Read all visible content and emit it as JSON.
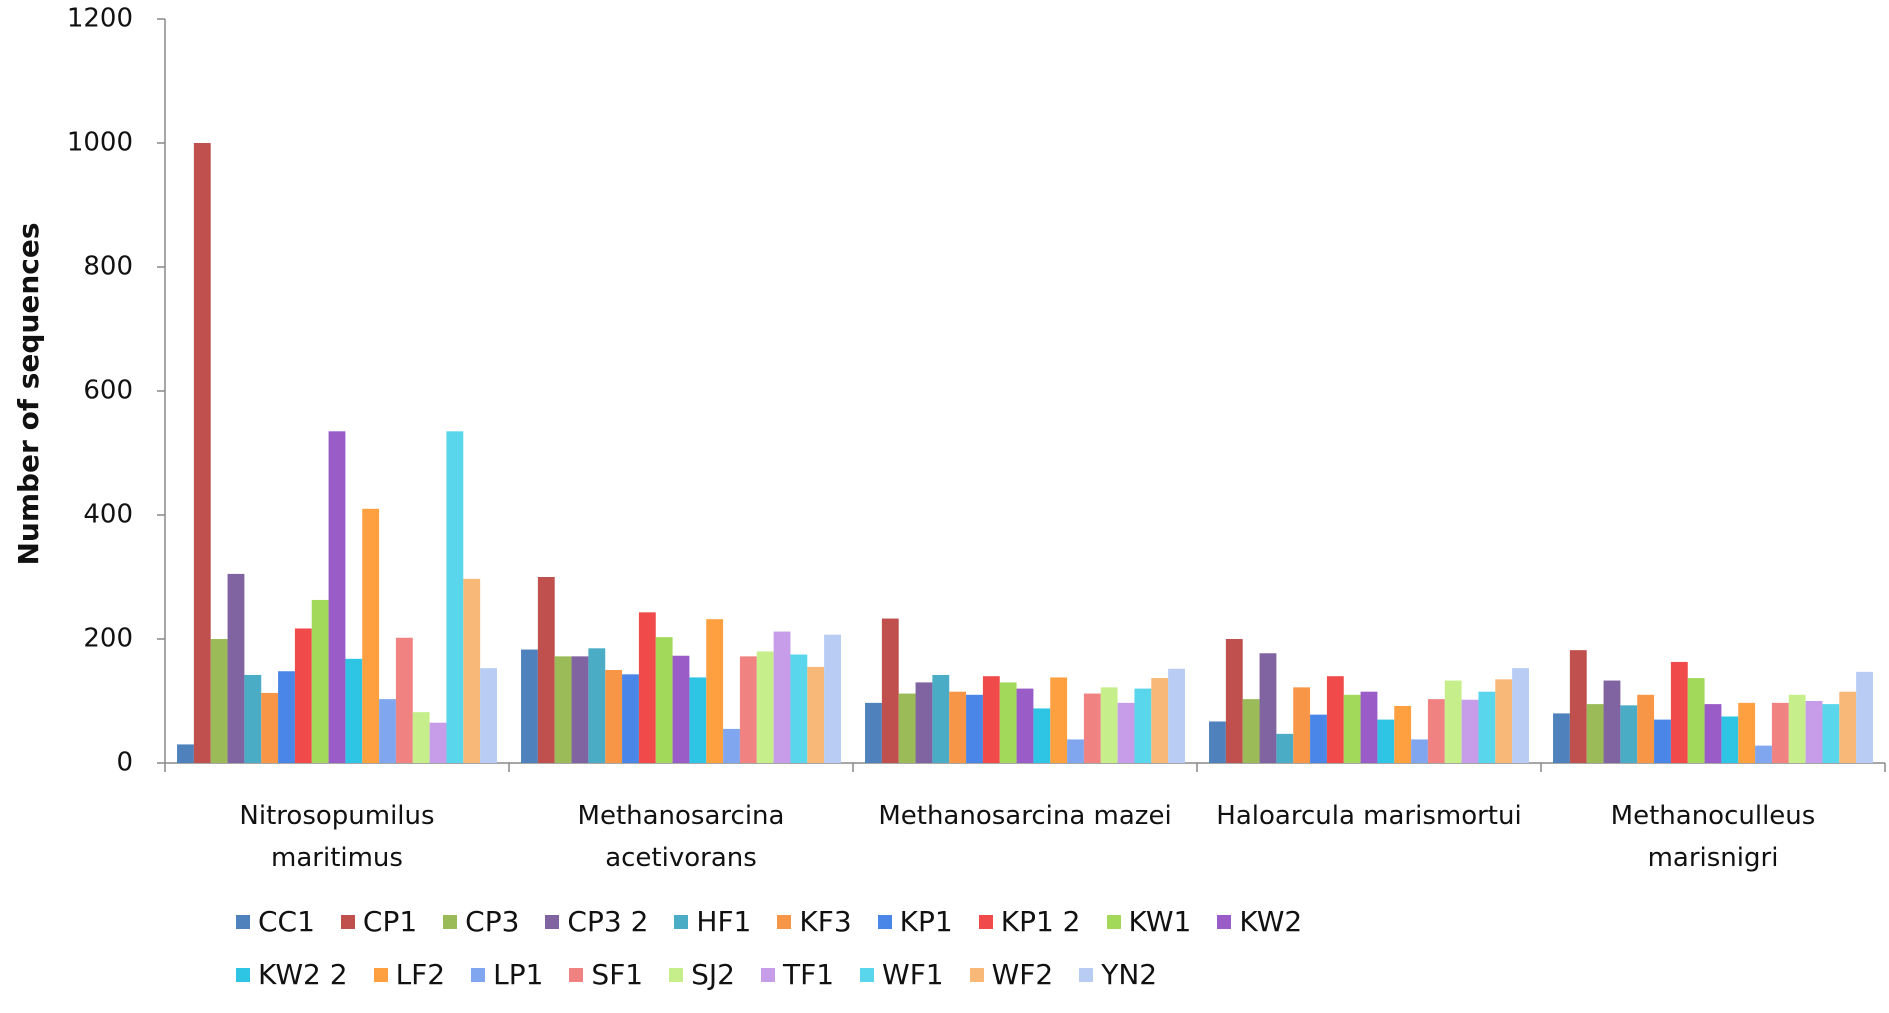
{
  "chart_data": {
    "type": "bar",
    "y_label": "Number of sequences",
    "categories": [
      "Nitrosopumilus\nmaritimus",
      "Methanosarcina\nacetivorans",
      "Methanosarcina mazei",
      "Haloarcula marismortui",
      "Methanoculleus\nmarisnigri"
    ],
    "ylim": [
      0,
      1200
    ],
    "yticks": [
      0,
      200,
      400,
      600,
      800,
      1000,
      1200
    ],
    "legend": "bottom",
    "series": [
      {
        "name": "CC1",
        "color": "#4f81bd",
        "values": [
          30,
          183,
          97,
          67,
          80
        ]
      },
      {
        "name": "CP1",
        "color": "#c0504d",
        "values": [
          1000,
          300,
          233,
          200,
          182
        ]
      },
      {
        "name": "CP3",
        "color": "#9bbb59",
        "values": [
          200,
          172,
          112,
          103,
          95
        ]
      },
      {
        "name": "CP3 2",
        "color": "#8064a2",
        "values": [
          305,
          172,
          130,
          177,
          133
        ]
      },
      {
        "name": "HF1",
        "color": "#4bacc6",
        "values": [
          142,
          185,
          142,
          47,
          93
        ]
      },
      {
        "name": "KF3",
        "color": "#f79646",
        "values": [
          113,
          150,
          115,
          122,
          110
        ]
      },
      {
        "name": "KP1",
        "color": "#4a86e8",
        "values": [
          148,
          143,
          110,
          78,
          70
        ]
      },
      {
        "name": "KP1 2",
        "color": "#f04a4a",
        "values": [
          217,
          243,
          140,
          140,
          163
        ]
      },
      {
        "name": "KW1",
        "color": "#a2d95a",
        "values": [
          263,
          203,
          130,
          110,
          137
        ]
      },
      {
        "name": "KW2",
        "color": "#9a5cc6",
        "values": [
          535,
          173,
          120,
          115,
          95
        ]
      },
      {
        "name": "KW2 2",
        "color": "#2ec4e4",
        "values": [
          168,
          138,
          88,
          70,
          75
        ]
      },
      {
        "name": "LF2",
        "color": "#ffa040",
        "values": [
          410,
          232,
          138,
          92,
          97
        ]
      },
      {
        "name": "LP1",
        "color": "#7fa6ef",
        "values": [
          103,
          55,
          38,
          38,
          28
        ]
      },
      {
        "name": "SF1",
        "color": "#f08282",
        "values": [
          202,
          172,
          112,
          103,
          97
        ]
      },
      {
        "name": "SJ2",
        "color": "#c6ef8c",
        "values": [
          82,
          180,
          122,
          133,
          110
        ]
      },
      {
        "name": "TF1",
        "color": "#c79ce8",
        "values": [
          65,
          212,
          97,
          102,
          100
        ]
      },
      {
        "name": "WF1",
        "color": "#5ad6ec",
        "values": [
          535,
          175,
          120,
          115,
          95
        ]
      },
      {
        "name": "WF2",
        "color": "#f8b878",
        "values": [
          297,
          155,
          137,
          135,
          115
        ]
      },
      {
        "name": "YN2",
        "color": "#b8ccf4",
        "values": [
          153,
          207,
          152,
          153,
          147
        ]
      }
    ]
  }
}
